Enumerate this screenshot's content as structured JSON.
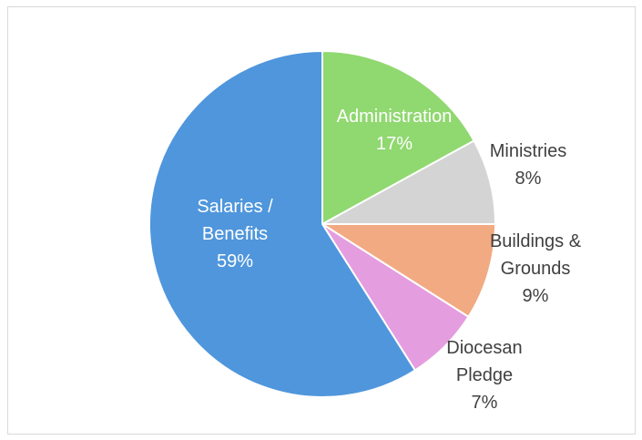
{
  "chart_data": {
    "type": "pie",
    "title": "",
    "slices": [
      {
        "label_lines": [
          "Administration",
          "17%"
        ],
        "value": 17,
        "color": "#90d870",
        "text_color": "#ffffff",
        "label_inside": true
      },
      {
        "label_lines": [
          "Ministries",
          "8%"
        ],
        "value": 8,
        "color": "#d4d4d4",
        "text_color": "#404040",
        "label_inside": false
      },
      {
        "label_lines": [
          "Buildings &",
          "Grounds",
          "9%"
        ],
        "value": 9,
        "color": "#f2aa82",
        "text_color": "#404040",
        "label_inside": false
      },
      {
        "label_lines": [
          "Diocesan",
          "Pledge",
          "7%"
        ],
        "value": 7,
        "color": "#e49ddf",
        "text_color": "#404040",
        "label_inside": false
      },
      {
        "label_lines": [
          "Salaries /",
          "Benefits",
          "59%"
        ],
        "value": 59,
        "color": "#4f96dc",
        "text_color": "#ffffff",
        "label_inside": true
      }
    ],
    "start_angle_deg": 0,
    "direction": "clockwise",
    "legend": "none"
  }
}
